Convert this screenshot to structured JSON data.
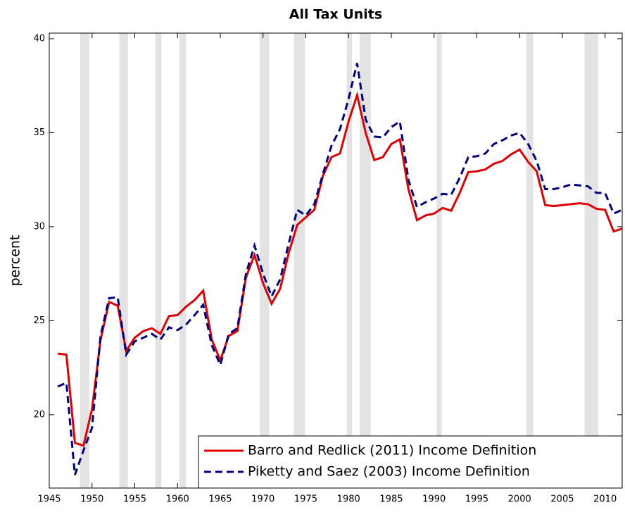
{
  "chart_data": {
    "type": "line",
    "title": "All Tax Units",
    "ylabel": "percent",
    "x": [
      1946,
      1947,
      1948,
      1949,
      1950,
      1951,
      1952,
      1953,
      1954,
      1955,
      1956,
      1957,
      1958,
      1959,
      1960,
      1961,
      1962,
      1963,
      1964,
      1965,
      1966,
      1967,
      1968,
      1969,
      1970,
      1971,
      1972,
      1973,
      1974,
      1975,
      1976,
      1977,
      1978,
      1979,
      1980,
      1981,
      1982,
      1983,
      1984,
      1985,
      1986,
      1987,
      1988,
      1989,
      1990,
      1991,
      1992,
      1993,
      1994,
      1995,
      1996,
      1997,
      1998,
      1999,
      2000,
      2001,
      2002,
      2003,
      2004,
      2005,
      2006,
      2007,
      2008,
      2009,
      2010,
      2011,
      2012
    ],
    "series": [
      {
        "name": "Barro and Redlick (2011) Income Definition",
        "color": "#e00000",
        "linestyle": "solid",
        "values": [
          23.25,
          23.2,
          18.5,
          18.35,
          20.3,
          24,
          26,
          25.8,
          23.4,
          24.1,
          24.45,
          24.6,
          24.3,
          25.25,
          25.3,
          25.75,
          26.1,
          26.6,
          24,
          22.9,
          24.2,
          24.45,
          27.3,
          28.5,
          27,
          25.9,
          26.7,
          28.6,
          30.1,
          30.5,
          30.9,
          32.7,
          33.7,
          33.9,
          35.6,
          37,
          35,
          33.55,
          33.7,
          34.4,
          34.65,
          32,
          30.35,
          30.6,
          30.7,
          31,
          30.85,
          31.8,
          32.9,
          32.95,
          33.05,
          33.35,
          33.5,
          33.85,
          34.1,
          33.45,
          32.95,
          31.15,
          31.1,
          31.15,
          31.2,
          31.25,
          31.2,
          30.95,
          30.9,
          29.75,
          29.9
        ]
      },
      {
        "name": "Piketty and Saez (2003) Income Definition",
        "color": "#000080",
        "linestyle": "dashed",
        "values": [
          21.5,
          21.7,
          16.8,
          18.1,
          19.3,
          24.2,
          26.2,
          26.25,
          23.2,
          23.9,
          24.1,
          24.3,
          24,
          24.65,
          24.5,
          24.8,
          25.3,
          25.85,
          23.7,
          22.65,
          24.3,
          24.6,
          27.5,
          29,
          27.5,
          26.3,
          27.2,
          29.1,
          30.9,
          30.6,
          31.2,
          32.8,
          34.3,
          35.2,
          36.8,
          38.7,
          35.7,
          34.8,
          34.75,
          35.3,
          35.6,
          32.5,
          31.05,
          31.3,
          31.5,
          31.75,
          31.7,
          32.6,
          33.7,
          33.75,
          33.9,
          34.4,
          34.6,
          34.85,
          35,
          34.4,
          33.5,
          32,
          32,
          32.1,
          32.25,
          32.2,
          32.15,
          31.8,
          31.8,
          30.7,
          30.9
        ]
      }
    ],
    "shaded_periods": [
      [
        1948.6,
        1949.7
      ],
      [
        1953.2,
        1954.2
      ],
      [
        1957.4,
        1958.1
      ],
      [
        1960.2,
        1961.0
      ],
      [
        1969.6,
        1970.7
      ],
      [
        1973.6,
        1974.9
      ],
      [
        1979.8,
        1980.4
      ],
      [
        1981.3,
        1982.6
      ],
      [
        1990.3,
        1990.9
      ],
      [
        2000.8,
        2001.6
      ],
      [
        2007.6,
        2009.2
      ]
    ],
    "shade_color": "#e3e3e3",
    "xlim": [
      1945,
      2012
    ],
    "xticks": [
      1945,
      1950,
      1955,
      1960,
      1965,
      1970,
      1975,
      1980,
      1985,
      1990,
      1995,
      2000,
      2005,
      2010
    ],
    "ylim": [
      16.1,
      40.3
    ],
    "yticks": [
      20,
      25,
      30,
      35,
      40
    ],
    "legend": "lower right"
  }
}
